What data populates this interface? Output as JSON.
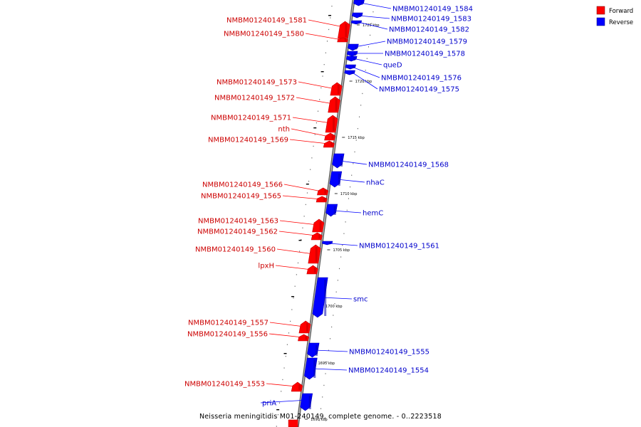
{
  "caption": "Neisseria meningitidis M01-240149, complete genome. - 0..2223518",
  "legend": [
    {
      "label": "Forward",
      "color": "#ff0000"
    },
    {
      "label": "Reverse",
      "color": "#0000ff"
    }
  ],
  "colors": {
    "forward": "#ff0000",
    "reverse": "#0000ff",
    "forward_dark": "#c00000",
    "reverse_dark": "#0000b0",
    "backbone": "#8c8c8c"
  },
  "ticks": [
    {
      "label": "1725 kbp",
      "pos_kbp": 1725
    },
    {
      "label": "1720 kbp",
      "pos_kbp": 1720
    },
    {
      "label": "1715 kbp",
      "pos_kbp": 1715
    },
    {
      "label": "1710 kbp",
      "pos_kbp": 1710
    },
    {
      "label": "1705 kbp",
      "pos_kbp": 1705
    },
    {
      "label": "1700 kbp",
      "pos_kbp": 1700
    },
    {
      "label": "1695 kbp",
      "pos_kbp": 1695
    },
    {
      "label": "1690 kbp",
      "pos_kbp": 1690
    }
  ],
  "genes": [
    {
      "name": "NMBM01240149_1584",
      "strand": "reverse"
    },
    {
      "name": "NMBM01240149_1583",
      "strand": "reverse"
    },
    {
      "name": "NMBM01240149_1582",
      "strand": "reverse"
    },
    {
      "name": "NMBM01240149_1581",
      "strand": "forward"
    },
    {
      "name": "NMBM01240149_1580",
      "strand": "forward"
    },
    {
      "name": "NMBM01240149_1579",
      "strand": "reverse"
    },
    {
      "name": "NMBM01240149_1578",
      "strand": "reverse"
    },
    {
      "name": "queD",
      "strand": "reverse"
    },
    {
      "name": "NMBM01240149_1576",
      "strand": "reverse"
    },
    {
      "name": "NMBM01240149_1575",
      "strand": "reverse"
    },
    {
      "name": "NMBM01240149_1573",
      "strand": "forward"
    },
    {
      "name": "NMBM01240149_1572",
      "strand": "forward"
    },
    {
      "name": "NMBM01240149_1571",
      "strand": "forward"
    },
    {
      "name": "nth",
      "strand": "forward"
    },
    {
      "name": "NMBM01240149_1569",
      "strand": "forward"
    },
    {
      "name": "NMBM01240149_1568",
      "strand": "reverse"
    },
    {
      "name": "nhaC",
      "strand": "reverse"
    },
    {
      "name": "NMBM01240149_1566",
      "strand": "forward"
    },
    {
      "name": "NMBM01240149_1565",
      "strand": "forward"
    },
    {
      "name": "hemC",
      "strand": "reverse"
    },
    {
      "name": "NMBM01240149_1563",
      "strand": "forward"
    },
    {
      "name": "NMBM01240149_1562",
      "strand": "forward"
    },
    {
      "name": "NMBM01240149_1561",
      "strand": "reverse"
    },
    {
      "name": "NMBM01240149_1560",
      "strand": "forward"
    },
    {
      "name": "lpxH",
      "strand": "forward"
    },
    {
      "name": "smc",
      "strand": "reverse"
    },
    {
      "name": "NMBM01240149_1557",
      "strand": "forward"
    },
    {
      "name": "NMBM01240149_1556",
      "strand": "forward"
    },
    {
      "name": "NMBM01240149_1555",
      "strand": "reverse"
    },
    {
      "name": "NMBM01240149_1554",
      "strand": "reverse"
    },
    {
      "name": "NMBM01240149_1553",
      "strand": "forward"
    },
    {
      "name": "priA",
      "strand": "reverse"
    }
  ]
}
